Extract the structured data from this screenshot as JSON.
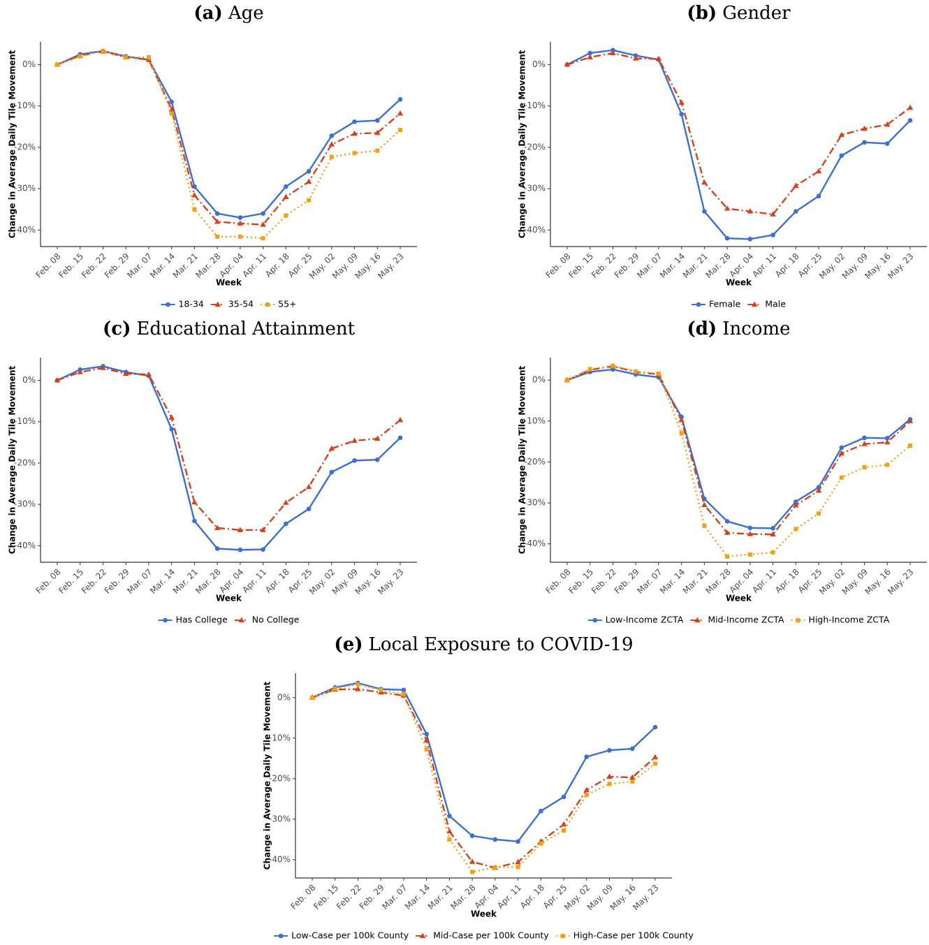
{
  "chart_data": [
    {
      "type": "line",
      "panel": "(a)",
      "title": "Age",
      "x_label": "Week",
      "y_label": "Change in Average Daily Tile Movement",
      "categories": [
        "Feb. 08",
        "Feb. 15",
        "Feb. 22",
        "Feb. 29",
        "Mar. 07",
        "Mar. 14",
        "Mar. 21",
        "Mar. 28",
        "Apr. 04",
        "Apr. 11",
        "Apr. 18",
        "Apr. 25",
        "May. 02",
        "May. 09",
        "May. 16",
        "May. 23"
      ],
      "ylim": [
        -44,
        5.5
      ],
      "yticks": [
        {
          "value": -40,
          "label": "-40%"
        },
        {
          "value": -30,
          "label": "-30%"
        },
        {
          "value": -20,
          "label": "-20%"
        },
        {
          "value": -10,
          "label": "-10%"
        },
        {
          "value": 0,
          "label": "0%"
        }
      ],
      "legend": "bottom",
      "series": [
        {
          "name": "18-34",
          "color": "#3a6fd8",
          "linestyle": "solid",
          "marker": "circle",
          "values": [
            0,
            2.5,
            3.3,
            2,
            1.2,
            -9,
            -29.5,
            -36,
            -37,
            -36,
            -29.5,
            -25.8,
            -17.2,
            -13.8,
            -13.5,
            -8.4
          ]
        },
        {
          "name": "35-54",
          "color": "#d9401a",
          "linestyle": "dashdot",
          "marker": "triangle",
          "values": [
            0,
            2.2,
            3.2,
            1.8,
            1.2,
            -10.8,
            -31.6,
            -38,
            -38.4,
            -38.7,
            -32,
            -28.3,
            -19.3,
            -16.7,
            -16.5,
            -11.8
          ]
        },
        {
          "name": "55+",
          "color": "#f5a00f",
          "linestyle": "dotted",
          "marker": "square",
          "values": [
            0,
            2,
            3.3,
            1.8,
            1.8,
            -11.8,
            -35,
            -41.6,
            -41.6,
            -42,
            -36.5,
            -32.8,
            -22.3,
            -21.4,
            -20.8,
            -15.8
          ]
        }
      ]
    },
    {
      "type": "line",
      "panel": "(b)",
      "title": "Gender",
      "x_label": "Week",
      "y_label": "Change in Average Daily Tile Movement",
      "categories": [
        "Feb. 08",
        "Feb. 15",
        "Feb. 22",
        "Feb. 29",
        "Mar. 07",
        "Mar. 14",
        "Mar. 21",
        "Mar. 28",
        "Apr. 04",
        "Apr. 11",
        "Apr. 18",
        "Apr. 25",
        "May. 02",
        "May. 09",
        "May. 16",
        "May. 23"
      ],
      "ylim": [
        -44,
        5.5
      ],
      "yticks": [
        {
          "value": -40,
          "label": "-40%"
        },
        {
          "value": -30,
          "label": "-30%"
        },
        {
          "value": -20,
          "label": "-20%"
        },
        {
          "value": -10,
          "label": "-10%"
        },
        {
          "value": 0,
          "label": "0%"
        }
      ],
      "legend": "bottom",
      "series": [
        {
          "name": "Female",
          "color": "#3a6fd8",
          "linestyle": "solid",
          "marker": "circle",
          "values": [
            0,
            2.8,
            3.5,
            2.2,
            1.2,
            -12,
            -35.5,
            -42,
            -42.2,
            -41.2,
            -35.5,
            -31.8,
            -22,
            -18.8,
            -19.1,
            -13.5
          ]
        },
        {
          "name": "Male",
          "color": "#d9401a",
          "linestyle": "dashdot",
          "marker": "triangle",
          "values": [
            0,
            1.8,
            2.8,
            1.5,
            1.4,
            -9.2,
            -28.5,
            -34.8,
            -35.5,
            -36.2,
            -29.3,
            -25.8,
            -17,
            -15.5,
            -14.5,
            -10.4
          ]
        }
      ]
    },
    {
      "type": "line",
      "panel": "(c)",
      "title": "Educational Attainment",
      "x_label": "Week",
      "y_label": "Change in Average Daily Tile Movement",
      "categories": [
        "Feb. 08",
        "Feb. 15",
        "Feb. 22",
        "Feb. 29",
        "Mar. 07",
        "Mar. 14",
        "Mar. 21",
        "Mar. 28",
        "Apr. 04",
        "Apr. 11",
        "Apr. 18",
        "Apr. 25",
        "May. 02",
        "May. 09",
        "May. 16",
        "May. 23"
      ],
      "ylim": [
        -44,
        5.5
      ],
      "yticks": [
        {
          "value": -40,
          "label": "-40%"
        },
        {
          "value": -30,
          "label": "-30%"
        },
        {
          "value": -20,
          "label": "-20%"
        },
        {
          "value": -10,
          "label": "-10%"
        },
        {
          "value": 0,
          "label": "0%"
        }
      ],
      "legend": "bottom",
      "series": [
        {
          "name": "Has College",
          "color": "#3a6fd8",
          "linestyle": "solid",
          "marker": "circle",
          "values": [
            0,
            2.6,
            3.4,
            2,
            1.1,
            -11.8,
            -34,
            -40.7,
            -41,
            -40.9,
            -34.7,
            -31.1,
            -22.2,
            -19.4,
            -19.2,
            -13.9
          ]
        },
        {
          "name": "No College",
          "color": "#d9401a",
          "linestyle": "dashdot",
          "marker": "triangle",
          "values": [
            0,
            2,
            3,
            1.6,
            1.4,
            -9,
            -29.5,
            -35.7,
            -36.2,
            -36.2,
            -29.6,
            -25.8,
            -16.5,
            -14.6,
            -14.1,
            -9.6
          ]
        }
      ]
    },
    {
      "type": "line",
      "panel": "(d)",
      "title": "Income",
      "x_label": "Week",
      "y_label": "Change in Average Daily Tile Movement",
      "categories": [
        "Feb. 08",
        "Feb. 15",
        "Feb. 22",
        "Feb. 29",
        "Mar. 07",
        "Mar. 14",
        "Mar. 21",
        "Mar. 28",
        "Apr. 04",
        "Apr. 11",
        "Apr. 18",
        "Apr. 25",
        "May. 02",
        "May. 09",
        "May. 16",
        "May. 23"
      ],
      "ylim": [
        -44.5,
        5.5
      ],
      "yticks": [
        {
          "value": -40,
          "label": "-40%"
        },
        {
          "value": -30,
          "label": "-30%"
        },
        {
          "value": -20,
          "label": "-20%"
        },
        {
          "value": -10,
          "label": "-10%"
        },
        {
          "value": 0,
          "label": "0%"
        }
      ],
      "legend": "bottom",
      "series": [
        {
          "name": "Low-Income ZCTA",
          "color": "#3a6fd8",
          "linestyle": "solid",
          "marker": "circle",
          "values": [
            0,
            2,
            2.6,
            1.4,
            0.7,
            -9,
            -29,
            -34.5,
            -36.1,
            -36.2,
            -29.7,
            -26.2,
            -16.5,
            -14.1,
            -14.2,
            -9.6
          ]
        },
        {
          "name": "Mid-Income ZCTA",
          "color": "#d9401a",
          "linestyle": "dashdot",
          "marker": "triangle",
          "values": [
            0,
            2.5,
            3.4,
            2,
            1.4,
            -9.8,
            -30.5,
            -37.3,
            -37.6,
            -37.7,
            -30.6,
            -27,
            -17.9,
            -15.6,
            -15.2,
            -10
          ]
        },
        {
          "name": "High-Income ZCTA",
          "color": "#f5a00f",
          "linestyle": "dotted",
          "marker": "square",
          "values": [
            0,
            2.7,
            3.5,
            2.1,
            1.6,
            -13,
            -35.6,
            -43.1,
            -42.6,
            -42.1,
            -36.4,
            -32.6,
            -23.8,
            -21.3,
            -20.7,
            -16
          ]
        }
      ]
    },
    {
      "type": "line",
      "panel": "(e)",
      "title": "Local Exposure to COVID-19",
      "x_label": "Week",
      "y_label": "Change in Average Daily Tile Movement",
      "categories": [
        "Feb. 08",
        "Feb. 15",
        "Feb. 22",
        "Feb. 29",
        "Mar. 07",
        "Mar. 14",
        "Mar. 21",
        "Mar. 28",
        "Apr. 04",
        "Apr. 11",
        "Apr. 18",
        "Apr. 25",
        "May. 02",
        "May. 09",
        "May. 16",
        "May. 23"
      ],
      "ylim": [
        -44.5,
        6
      ],
      "yticks": [
        {
          "value": -40,
          "label": "-40%"
        },
        {
          "value": -30,
          "label": "-30%"
        },
        {
          "value": -20,
          "label": "-20%"
        },
        {
          "value": -10,
          "label": "-10%"
        },
        {
          "value": 0,
          "label": "0%"
        }
      ],
      "legend": "bottom",
      "series": [
        {
          "name": "Low-Case per 100k County",
          "color": "#3a6fd8",
          "linestyle": "solid",
          "marker": "circle",
          "values": [
            0,
            2.5,
            3.6,
            2.1,
            1.9,
            -9,
            -29.2,
            -34.1,
            -35,
            -35.5,
            -28,
            -24.5,
            -14.6,
            -13,
            -12.6,
            -7.3
          ]
        },
        {
          "name": "Mid-Case per 100k County",
          "color": "#d9401a",
          "linestyle": "dashdot",
          "marker": "triangle",
          "values": [
            0,
            2,
            2.1,
            1.3,
            0.5,
            -10.5,
            -33,
            -40.5,
            -42,
            -40.6,
            -35.5,
            -31.3,
            -22.8,
            -19.5,
            -19.7,
            -14.7
          ]
        },
        {
          "name": "High-Case per 100k County",
          "color": "#f5a00f",
          "linestyle": "dotted",
          "marker": "square",
          "values": [
            0,
            2.2,
            3.3,
            1.9,
            0.9,
            -12.8,
            -35,
            -43,
            -41.9,
            -41.8,
            -36,
            -32.8,
            -24,
            -21.3,
            -20.7,
            -16.3
          ]
        }
      ]
    }
  ]
}
